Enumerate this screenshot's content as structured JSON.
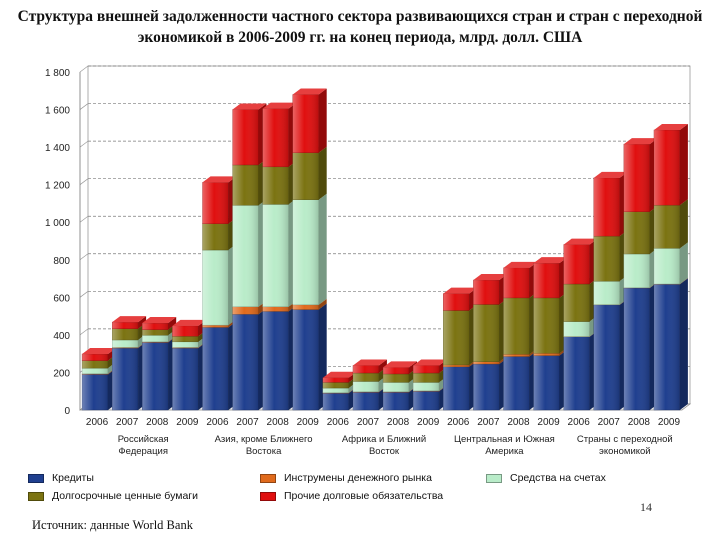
{
  "title": "Структура внешней задолженности частного сектора развивающихся стран и стран с переходной экономикой в 2006-2009 гг. на конец периода, млрд. долл. США",
  "page_number": "14",
  "source": "Источник: данные World Bank",
  "chart_data": {
    "type": "bar",
    "stacked": true,
    "ylim": [
      0,
      1800
    ],
    "yticks": [
      0,
      200,
      400,
      600,
      800,
      1000,
      1200,
      1400,
      1600,
      1800
    ],
    "ytick_labels": [
      "0",
      "200",
      "400",
      "600",
      "800",
      "1 000",
      "1 200",
      "1 400",
      "1 600",
      "1 800"
    ],
    "grid": true,
    "legend_position": "bottom",
    "groups": [
      {
        "label_lines": [
          "Российская",
          "Федерация"
        ],
        "years": [
          "2006",
          "2007",
          "2008",
          "2009"
        ]
      },
      {
        "label_lines": [
          "Азия, кроме Ближнего",
          "Востока"
        ],
        "years": [
          "2006",
          "2007",
          "2008",
          "2009"
        ]
      },
      {
        "label_lines": [
          "Африка и Ближний",
          "Восток"
        ],
        "years": [
          "2006",
          "2007",
          "2008",
          "2009"
        ]
      },
      {
        "label_lines": [
          "Центральная и Южная",
          "Америка"
        ],
        "years": [
          "2006",
          "2007",
          "2008",
          "2009"
        ]
      },
      {
        "label_lines": [
          "Страны с переходной",
          "экономикой"
        ],
        "years": [
          "2006",
          "2007",
          "2008",
          "2009"
        ]
      }
    ],
    "series": [
      {
        "name": "Кредиты",
        "color": "#1f3f8f",
        "values": [
          190,
          330,
          360,
          330,
          440,
          510,
          525,
          535,
          90,
          95,
          95,
          100,
          230,
          245,
          285,
          290,
          390,
          560,
          650,
          670
        ]
      },
      {
        "name": "Инструмены денежного рынка",
        "color": "#e06a1c",
        "values": [
          3,
          3,
          3,
          3,
          12,
          40,
          25,
          25,
          2,
          2,
          2,
          2,
          10,
          12,
          12,
          12,
          1,
          1,
          1,
          1
        ]
      },
      {
        "name": "Средства на счетах",
        "color": "#b9ecc9",
        "values": [
          30,
          40,
          35,
          30,
          400,
          540,
          545,
          560,
          25,
          55,
          50,
          45,
          0,
          0,
          0,
          0,
          80,
          125,
          180,
          190
        ]
      },
      {
        "name": "Долгосрочные ценные бумаги",
        "color": "#7b7311",
        "values": [
          40,
          60,
          30,
          30,
          140,
          215,
          200,
          250,
          30,
          45,
          45,
          50,
          290,
          305,
          300,
          295,
          200,
          240,
          225,
          230
        ]
      },
      {
        "name": "Прочие долговые обязательства",
        "color": "#e00f0f",
        "values": [
          35,
          35,
          35,
          55,
          220,
          295,
          310,
          310,
          25,
          40,
          35,
          40,
          90,
          130,
          160,
          185,
          210,
          310,
          360,
          400
        ]
      }
    ]
  }
}
